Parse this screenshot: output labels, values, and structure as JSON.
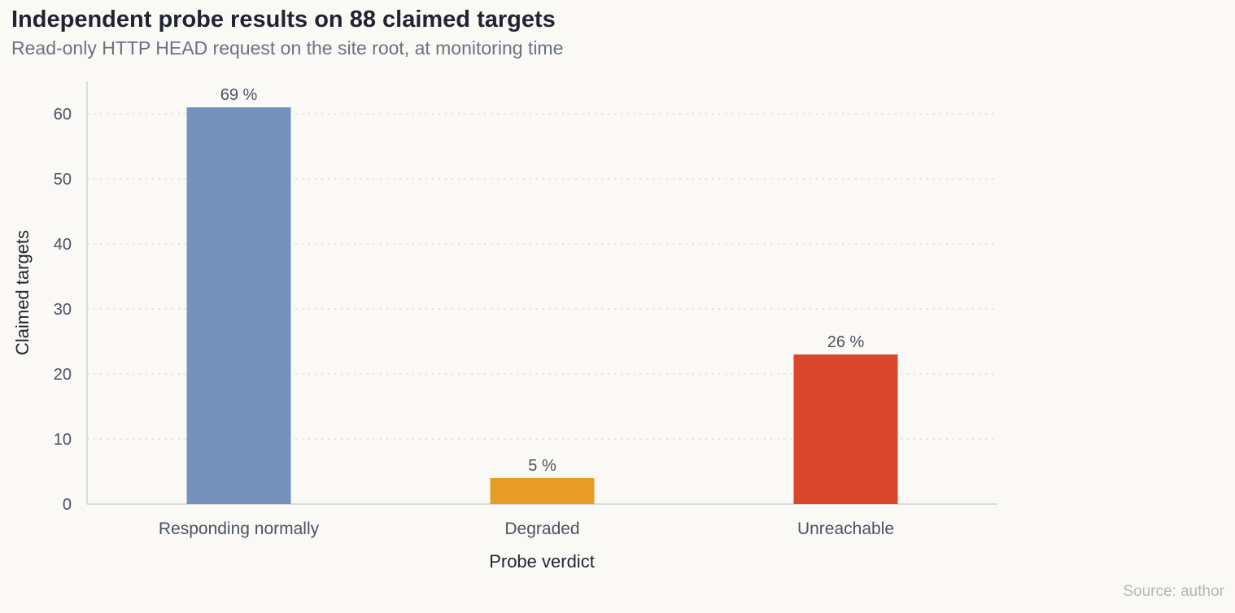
{
  "chart_data": {
    "type": "bar",
    "title": "Independent probe results on 88 claimed targets",
    "subtitle": "Read-only HTTP HEAD request on the site root, at monitoring time",
    "xlabel": "Probe verdict",
    "ylabel": "Claimed targets",
    "categories": [
      "Responding normally",
      "Degraded",
      "Unreachable"
    ],
    "values": [
      61,
      4,
      23
    ],
    "data_labels": [
      "69 %",
      "5 %",
      "26 %"
    ],
    "colors": [
      "#7592bd",
      "#e89c28",
      "#d9462b"
    ],
    "ylim": [
      0,
      65
    ],
    "yticks": [
      0,
      10,
      20,
      30,
      40,
      50,
      60
    ],
    "grid": true,
    "grid_style": "dotted-horizontal",
    "source": "Source: author"
  }
}
